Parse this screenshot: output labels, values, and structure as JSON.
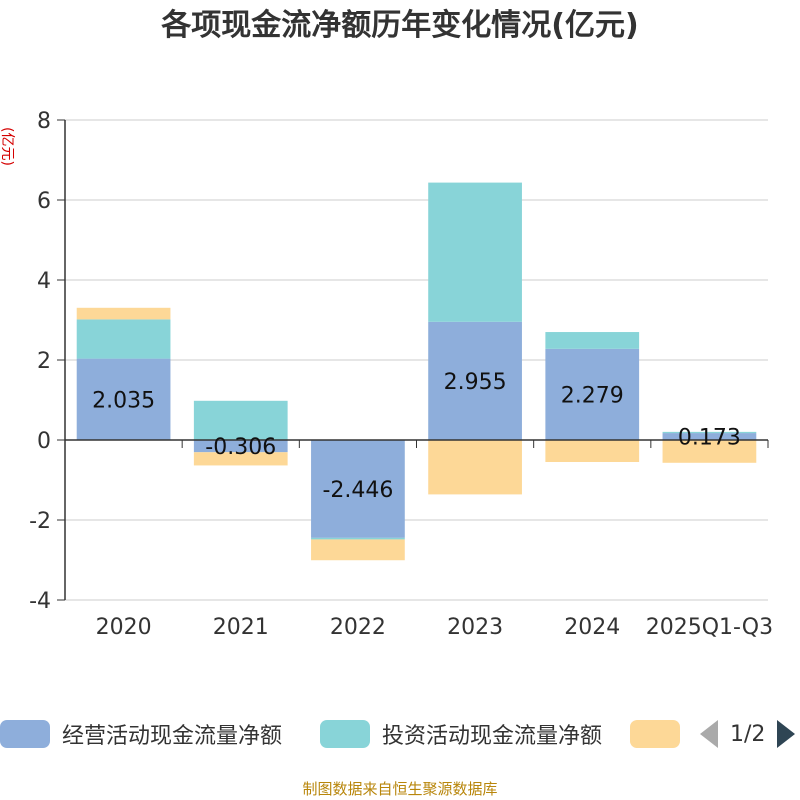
{
  "chart_data": {
    "type": "bar",
    "stacked": true,
    "title": "各项现金流净额历年变化情况(亿元)",
    "ylabel": "(亿元)",
    "ylim": [
      -4,
      8
    ],
    "yticks": [
      -4,
      -2,
      0,
      2,
      4,
      6,
      8
    ],
    "categories": [
      "2020",
      "2021",
      "2022",
      "2023",
      "2024",
      "2025Q1-Q3"
    ],
    "series": [
      {
        "name": "经营活动现金流量净额",
        "color": "#8eaedb",
        "values": [
          2.035,
          -0.306,
          -2.446,
          2.955,
          2.279,
          0.173
        ],
        "labels": [
          "2.035",
          "-0.306",
          "-2.446",
          "2.955",
          "2.279",
          "0.173"
        ]
      },
      {
        "name": "投资活动现金流量净额",
        "color": "#88d4d8",
        "values": [
          0.98,
          0.98,
          -0.04,
          3.48,
          0.42,
          0.03
        ]
      },
      {
        "name": "",
        "color": "#fdd897",
        "values": [
          0.29,
          -0.33,
          -0.52,
          -1.36,
          -0.55,
          -0.57
        ]
      }
    ],
    "legend": {
      "position": "bottom",
      "page_text": "1/2"
    }
  },
  "source_note": "制图数据来自恒生聚源数据库"
}
